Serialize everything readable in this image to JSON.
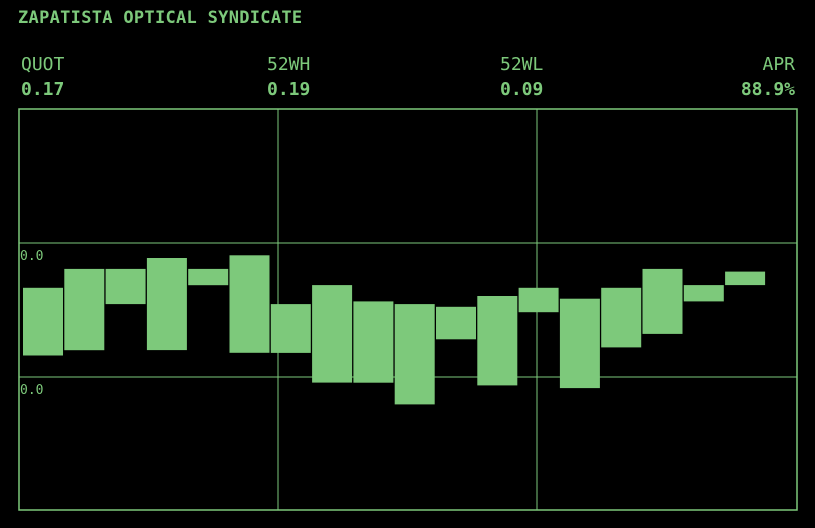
{
  "header": {
    "title": "ZAPATISTA OPTICAL SYNDICATE"
  },
  "stats": [
    {
      "label": "QUOT",
      "value": "0.17"
    },
    {
      "label": "52WH",
      "value": "0.19"
    },
    {
      "label": "52WL",
      "value": "0.09"
    },
    {
      "label": "APR",
      "value": "88.9%"
    }
  ],
  "colors": {
    "background": "#000000",
    "accent": "#7dc97b"
  },
  "chart_data": {
    "type": "candlestick",
    "grid": true,
    "y_tick_labels": [
      "0.0",
      "0.0"
    ],
    "ylim": [
      0.056,
      0.204
    ],
    "bars": [
      {
        "open": 0.138,
        "close": 0.113
      },
      {
        "open": 0.115,
        "close": 0.145
      },
      {
        "open": 0.145,
        "close": 0.132
      },
      {
        "open": 0.115,
        "close": 0.149
      },
      {
        "open": 0.145,
        "close": 0.139
      },
      {
        "open": 0.15,
        "close": 0.114
      },
      {
        "open": 0.132,
        "close": 0.114
      },
      {
        "open": 0.139,
        "close": 0.103
      },
      {
        "open": 0.103,
        "close": 0.133
      },
      {
        "open": 0.132,
        "close": 0.095
      },
      {
        "open": 0.131,
        "close": 0.119
      },
      {
        "open": 0.135,
        "close": 0.102
      },
      {
        "open": 0.129,
        "close": 0.138
      },
      {
        "open": 0.101,
        "close": 0.134
      },
      {
        "open": 0.138,
        "close": 0.116
      },
      {
        "open": 0.121,
        "close": 0.145
      },
      {
        "open": 0.139,
        "close": 0.133
      },
      {
        "open": 0.139,
        "close": 0.144
      }
    ]
  }
}
